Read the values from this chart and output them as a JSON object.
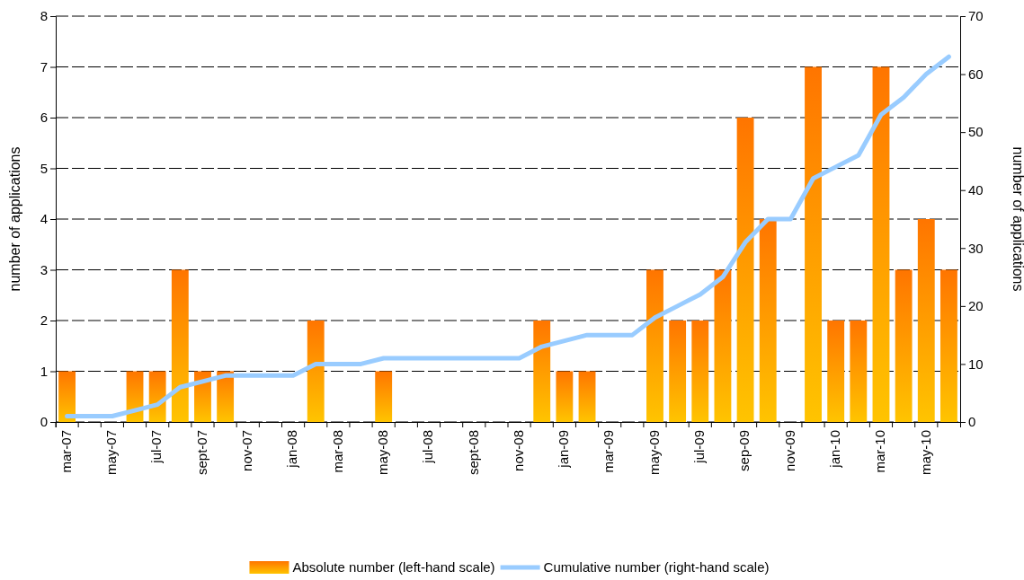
{
  "chart_data": {
    "type": "bar",
    "ylabel": "number of applications",
    "y2label": "number of applications",
    "categories": [
      "mar-07",
      null,
      "may-07",
      null,
      "jul-07",
      null,
      "sept-07",
      null,
      "nov-07",
      null,
      "jan-08",
      null,
      "mar-08",
      null,
      "may-08",
      null,
      "jul-08",
      null,
      "sept-08",
      null,
      "nov-08",
      null,
      "jan-09",
      null,
      "mar-09",
      null,
      "may-09",
      null,
      "jul-09",
      null,
      "sep-09",
      null,
      "nov-09",
      null,
      "jan-10",
      null,
      "mar-10",
      null,
      "may-10",
      null
    ],
    "series": [
      {
        "name": "Absolute number (left-hand scale)",
        "color": "#ff9900",
        "values": [
          1,
          0,
          0,
          1,
          1,
          3,
          1,
          1,
          0,
          0,
          0,
          2,
          0,
          0,
          1,
          0,
          0,
          0,
          0,
          0,
          0,
          2,
          1,
          1,
          0,
          0,
          3,
          2,
          2,
          3,
          6,
          4,
          0,
          7,
          2,
          2,
          7,
          3,
          4,
          3
        ]
      },
      {
        "name": "Cumulative number (right-hand scale)",
        "type": "line",
        "axis": "y2",
        "color": "#99ccff",
        "values": [
          1,
          1,
          1,
          2,
          3,
          6,
          7,
          8,
          8,
          8,
          8,
          10,
          10,
          10,
          11,
          11,
          11,
          11,
          11,
          11,
          11,
          13,
          14,
          15,
          15,
          15,
          18,
          20,
          22,
          25,
          31,
          35,
          35,
          42,
          44,
          46,
          53,
          56,
          60,
          63
        ]
      }
    ],
    "ylim": [
      0,
      8
    ],
    "yticks": [
      0,
      1,
      2,
      3,
      4,
      5,
      6,
      7,
      8
    ],
    "y2lim": [
      0,
      70
    ],
    "y2ticks": [
      0,
      10,
      20,
      30,
      40,
      50,
      60,
      70
    ],
    "grid": "y",
    "legend": "bottom",
    "marker": "none",
    "line_style": "solid"
  }
}
